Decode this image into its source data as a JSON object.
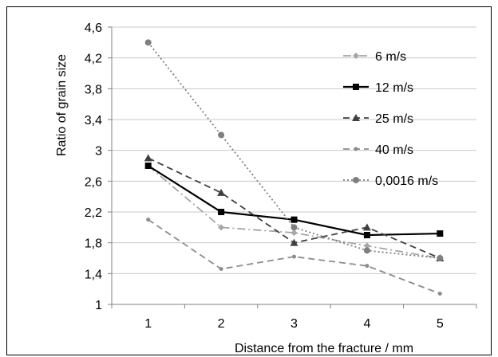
{
  "chart_data": {
    "type": "line",
    "title": "",
    "xlabel": "Distance from the fracture / mm",
    "ylabel": "Ratio of grain size",
    "x": [
      1,
      2,
      3,
      4,
      5
    ],
    "x_ticks": [
      "1",
      "2",
      "3",
      "4",
      "5"
    ],
    "xlim": [
      0.5,
      5.5
    ],
    "ylim": [
      1,
      4.6
    ],
    "y_ticks": [
      "1",
      "1,4",
      "1,8",
      "2,2",
      "2,6",
      "3",
      "3,4",
      "3,8",
      "4,2",
      "4,6"
    ],
    "grid": true,
    "legend_position": "right",
    "series": [
      {
        "name": "6 m/s",
        "values": [
          2.8,
          2.0,
          1.93,
          1.76,
          1.6
        ],
        "color": "#a6a6a6",
        "dash": "dash-dot",
        "marker": "diamond"
      },
      {
        "name": "12 m/s",
        "values": [
          2.8,
          2.2,
          2.1,
          1.9,
          1.92
        ],
        "color": "#000000",
        "dash": "solid",
        "marker": "square"
      },
      {
        "name": "25 m/s",
        "values": [
          2.9,
          2.45,
          1.8,
          2.0,
          1.6
        ],
        "color": "#404040",
        "dash": "dash",
        "marker": "triangle"
      },
      {
        "name": "40 m/s",
        "values": [
          2.1,
          1.46,
          1.62,
          1.5,
          1.14
        ],
        "color": "#8c8c8c",
        "dash": "dash",
        "marker": "circle-small"
      },
      {
        "name": "0,0016 m/s",
        "values": [
          4.4,
          3.2,
          2.0,
          1.7,
          1.6
        ],
        "color": "#7f7f7f",
        "dash": "dot",
        "marker": "circle"
      }
    ]
  }
}
